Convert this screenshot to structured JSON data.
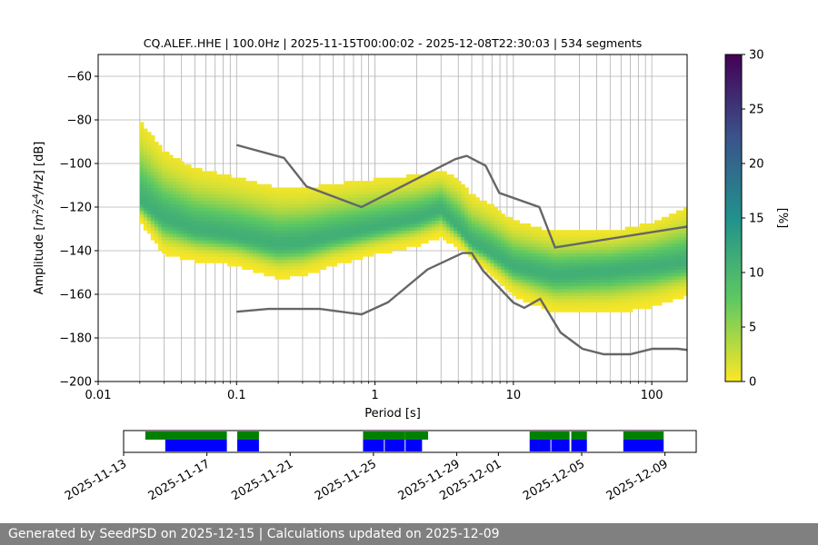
{
  "colors": {
    "nlnm_nhnm": "#666666",
    "grid": "#b0b0b0",
    "gap_bar": "#0000ff",
    "available_bar": "#008000",
    "footer_bg": "#808080"
  },
  "chart_data": [
    {
      "type": "heatmap",
      "title": "CQ.ALEF..HHE | 100.0Hz | 2025-11-15T00:00:02 - 2025-12-08T22:30:03 | 534 segments",
      "xlabel": "Period [s]",
      "ylabel_parts": [
        "Amplitude [",
        "m",
        "2",
        "/",
        "s",
        "4",
        "/",
        "Hz",
        "] [dB]"
      ],
      "x_scale": "log",
      "xlim": [
        0.01,
        180
      ],
      "ylim": [
        -200,
        -50
      ],
      "grid": true,
      "xticks": [
        {
          "value": 0.01,
          "label": "0.01"
        },
        {
          "value": 0.1,
          "label": "0.1"
        },
        {
          "value": 1,
          "label": "1"
        },
        {
          "value": 10,
          "label": "10"
        },
        {
          "value": 100,
          "label": "100"
        }
      ],
      "yticks": [
        {
          "value": -60,
          "label": "−60"
        },
        {
          "value": -80,
          "label": "−80"
        },
        {
          "value": -100,
          "label": "−100"
        },
        {
          "value": -120,
          "label": "−120"
        },
        {
          "value": -140,
          "label": "−140"
        },
        {
          "value": -160,
          "label": "−160"
        },
        {
          "value": -180,
          "label": "−180"
        },
        {
          "value": -200,
          "label": "−200"
        }
      ],
      "colorbar": {
        "label": "[%]",
        "range": [
          0,
          30
        ],
        "ticks": [
          {
            "value": 0,
            "label": "0"
          },
          {
            "value": 5,
            "label": "5"
          },
          {
            "value": 10,
            "label": "10"
          },
          {
            "value": 15,
            "label": "15"
          },
          {
            "value": 20,
            "label": "20"
          },
          {
            "value": 25,
            "label": "25"
          },
          {
            "value": 30,
            "label": "30"
          }
        ],
        "stops": [
          "#fde725",
          "#5ec962",
          "#21918c",
          "#3b528b",
          "#440154"
        ]
      },
      "psd_band": {
        "period": [
          0.02,
          0.03,
          0.05,
          0.1,
          0.2,
          0.3,
          0.5,
          1,
          2,
          3,
          4,
          5,
          7,
          10,
          20,
          50,
          100,
          180
        ],
        "mode": [
          -118,
          -126,
          -131,
          -134,
          -138,
          -137,
          -134,
          -130,
          -126,
          -122,
          -130,
          -137,
          -142,
          -148,
          -152,
          -150,
          -148,
          -146
        ],
        "low": [
          -126,
          -141,
          -144,
          -146,
          -152,
          -151,
          -146,
          -141,
          -137,
          -133,
          -138,
          -142,
          -151,
          -160,
          -168,
          -168,
          -165,
          -160
        ],
        "high": [
          -81,
          -95,
          -103,
          -107,
          -112,
          -112,
          -110,
          -108,
          -106,
          -104,
          -108,
          -115,
          -120,
          -127,
          -132,
          -132,
          -128,
          -121
        ],
        "outlier_high": [
          -86,
          -90,
          -92,
          -94,
          -96,
          -95,
          -94,
          -93,
          -92,
          -92,
          -93,
          -95,
          -97,
          -98
        ]
      },
      "nhnm": {
        "period": [
          0.1,
          0.22,
          0.32,
          0.8,
          3.8,
          4.6,
          6.3,
          7.9,
          15.4,
          20,
          354.8
        ],
        "db": [
          -91.5,
          -97.4,
          -110.5,
          -120,
          -98,
          -96.5,
          -101,
          -113.5,
          -120,
          -138.5,
          -126
        ]
      },
      "nlnm": {
        "period": [
          0.1,
          0.17,
          0.4,
          0.8,
          1.24,
          2.4,
          4.3,
          5,
          6,
          10,
          12,
          15.6,
          21.9,
          31.6,
          45,
          70,
          101,
          154,
          328
        ],
        "db": [
          -168,
          -166.7,
          -166.7,
          -169.2,
          -163.7,
          -148.6,
          -141.1,
          -141.1,
          -149,
          -163.8,
          -166.2,
          -162.1,
          -177.5,
          -185,
          -187.5,
          -187.5,
          -185,
          -185,
          -187.5
        ]
      }
    },
    {
      "type": "timeline",
      "xticks": [
        "2025-11-13",
        "2025-11-17",
        "2025-11-21",
        "2025-11-25",
        "2025-11-29",
        "2025-12-01",
        "2025-12-05",
        "2025-12-09"
      ],
      "xlim": [
        "2025-11-13T00:00",
        "2025-12-10T12:00"
      ],
      "available": [
        [
          "2025-11-14T01:00",
          "2025-11-17T23:00"
        ],
        [
          "2025-11-18T11:00",
          "2025-11-19T12:00"
        ],
        [
          "2025-11-24T12:00",
          "2025-11-26T12:00"
        ],
        [
          "2025-11-26T12:00",
          "2025-11-27T15:00"
        ],
        [
          "2025-12-02T12:00",
          "2025-12-04T10:00"
        ],
        [
          "2025-12-04T12:00",
          "2025-12-05T06:00"
        ],
        [
          "2025-12-07T00:00",
          "2025-12-08T22:30"
        ]
      ],
      "segments": [
        [
          "2025-11-15T00:00",
          "2025-11-17T23:00"
        ],
        [
          "2025-11-18T11:00",
          "2025-11-19T12:00"
        ],
        [
          "2025-11-24T12:00",
          "2025-11-25T12:00"
        ],
        [
          "2025-11-25T13:00",
          "2025-11-26T12:00"
        ],
        [
          "2025-11-26T13:00",
          "2025-11-27T08:00"
        ],
        [
          "2025-12-02T12:00",
          "2025-12-03T12:00"
        ],
        [
          "2025-12-03T13:00",
          "2025-12-04T10:00"
        ],
        [
          "2025-12-04T12:00",
          "2025-12-05T06:00"
        ],
        [
          "2025-12-07T00:00",
          "2025-12-08T22:30"
        ]
      ]
    }
  ],
  "footer": {
    "text": "Generated by SeedPSD on 2025-12-15 | Calculations updated on 2025-12-09"
  }
}
